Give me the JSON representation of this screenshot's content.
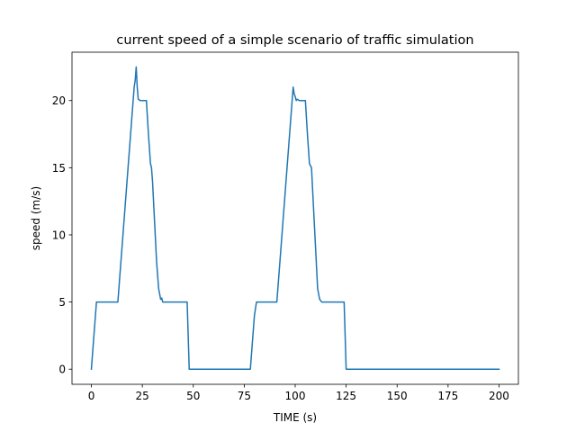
{
  "chart_data": {
    "type": "line",
    "title": "current speed of a simple scenario of traffic simulation",
    "xlabel": "TIME (s)",
    "ylabel": "speed (m/s)",
    "xlim": [
      -9.5,
      209.5
    ],
    "ylim": [
      -1.125,
      23.6
    ],
    "xticks": [
      0,
      25,
      50,
      75,
      100,
      125,
      150,
      175,
      200
    ],
    "yticks": [
      0,
      5,
      10,
      15,
      20
    ],
    "grid": false,
    "series": [
      {
        "color": "#1f77b4",
        "x": [
          0,
          1,
          2,
          2.5,
          3,
          13,
          14,
          15,
          16,
          17,
          18,
          19,
          20,
          21,
          21.5,
          22,
          22.5,
          23,
          24,
          25,
          26,
          27,
          28,
          29,
          29.5,
          30,
          31,
          32,
          33,
          34,
          34.5,
          35,
          36,
          45,
          46,
          47,
          48,
          49,
          50,
          55,
          60,
          65,
          70,
          75,
          78,
          79,
          80,
          81,
          82,
          90,
          91,
          92,
          93,
          94,
          95,
          96,
          97,
          98,
          99,
          99.5,
          100,
          100.5,
          101,
          102,
          103,
          104,
          105,
          106,
          107,
          108,
          109,
          110,
          111,
          112,
          113,
          114,
          124,
          125,
          126,
          127,
          130,
          140,
          150,
          160,
          170,
          180,
          190,
          200
        ],
        "y": [
          0,
          2,
          4,
          5,
          5,
          5,
          7,
          9,
          11,
          13,
          15,
          17,
          19,
          21,
          21.5,
          22.5,
          21,
          20.1,
          20,
          20,
          20,
          20,
          17.5,
          15.3,
          15,
          14,
          11,
          8,
          6,
          5.2,
          5.3,
          5,
          5,
          5,
          5,
          5,
          0,
          0,
          0,
          0,
          0,
          0,
          0,
          0,
          0,
          2,
          4,
          5,
          5,
          5,
          5,
          7,
          9,
          11,
          13,
          15,
          17,
          19,
          21,
          20.5,
          20.3,
          20,
          20.1,
          20,
          20,
          20,
          20,
          17.5,
          15.3,
          15,
          12,
          9,
          6,
          5.2,
          5,
          5,
          5,
          0,
          0,
          0,
          0,
          0,
          0,
          0,
          0,
          0,
          0,
          0
        ]
      }
    ]
  }
}
